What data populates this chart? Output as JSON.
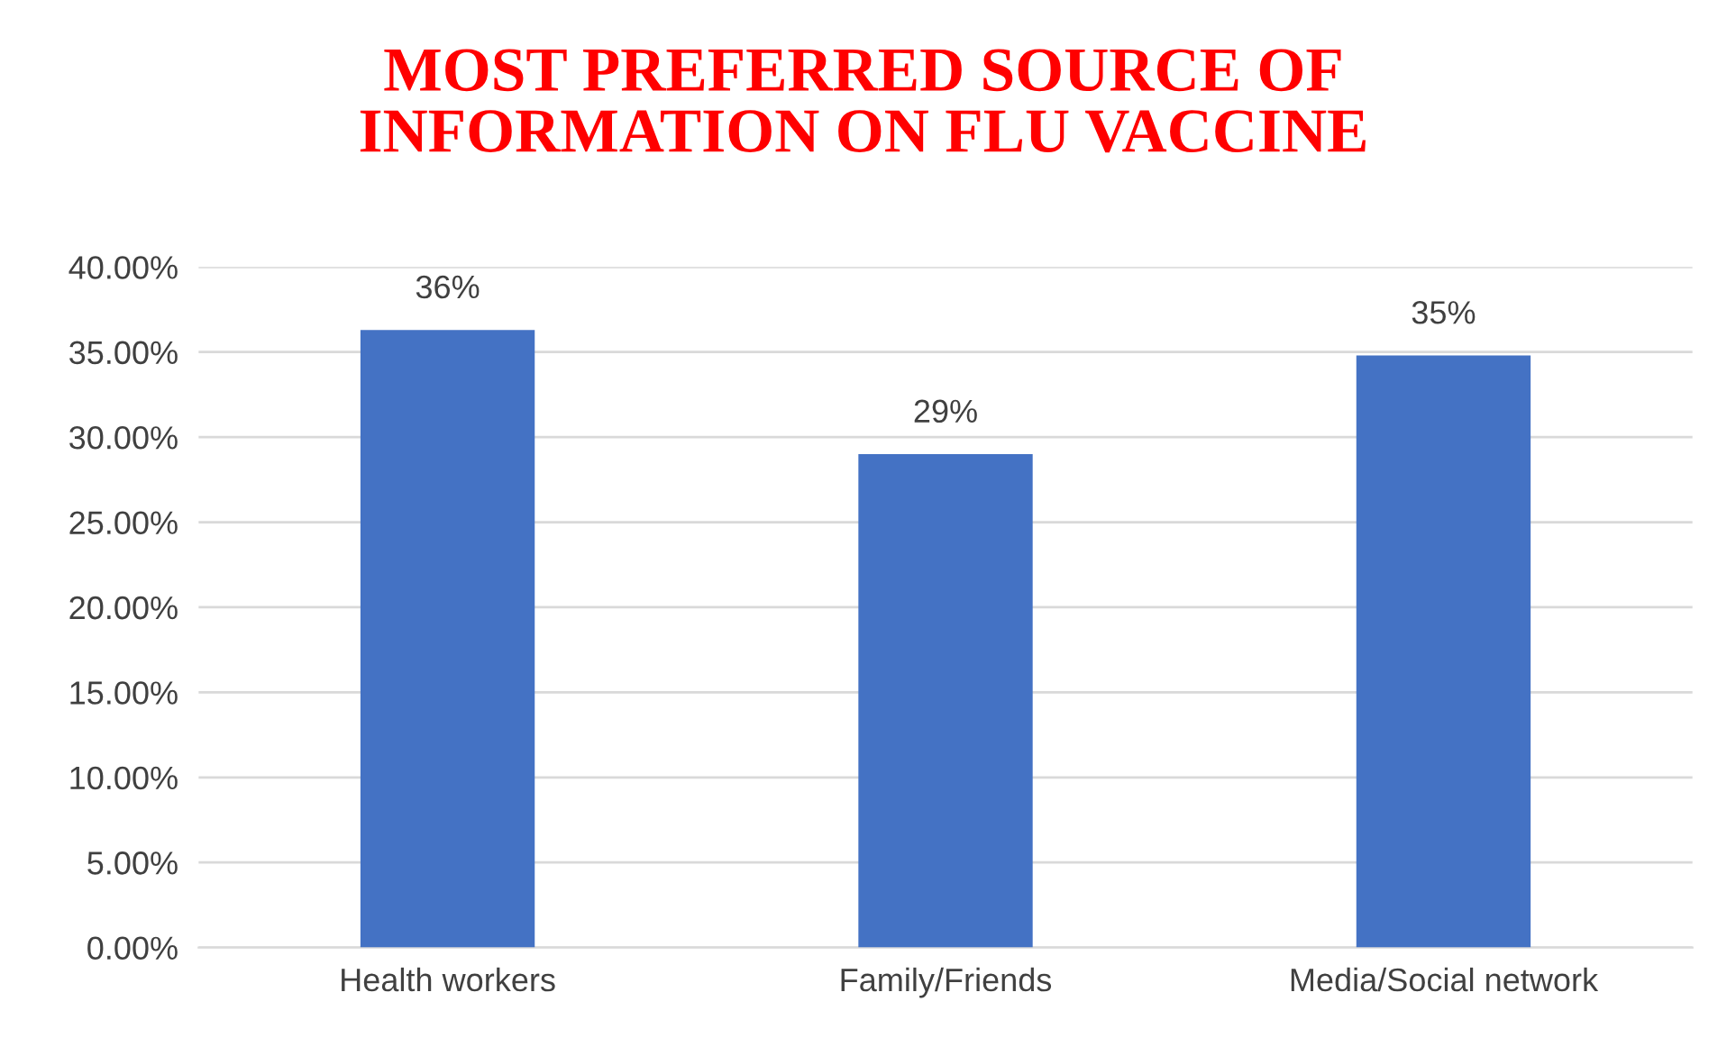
{
  "chart_data": {
    "type": "bar",
    "title": "MOST PREFERRED SOURCE OF\nINFORMATION ON FLU VACCINE",
    "categories": [
      "Health workers",
      "Family/Friends",
      "Media/Social network"
    ],
    "values": [
      36.3,
      29.0,
      34.8
    ],
    "value_labels": [
      "36%",
      "29%",
      "35%"
    ],
    "color": "#4472c4",
    "ylim": [
      0,
      40
    ],
    "yticks": [
      {
        "value": 0,
        "label": "0.00%"
      },
      {
        "value": 5,
        "label": "5.00%"
      },
      {
        "value": 10,
        "label": "10.00%"
      },
      {
        "value": 15,
        "label": "15.00%"
      },
      {
        "value": 20,
        "label": "20.00%"
      },
      {
        "value": 25,
        "label": "25.00%"
      },
      {
        "value": 30,
        "label": "30.00%"
      },
      {
        "value": 35,
        "label": "35.00%"
      },
      {
        "value": 40,
        "label": "40.00%"
      }
    ],
    "grid": "y"
  }
}
